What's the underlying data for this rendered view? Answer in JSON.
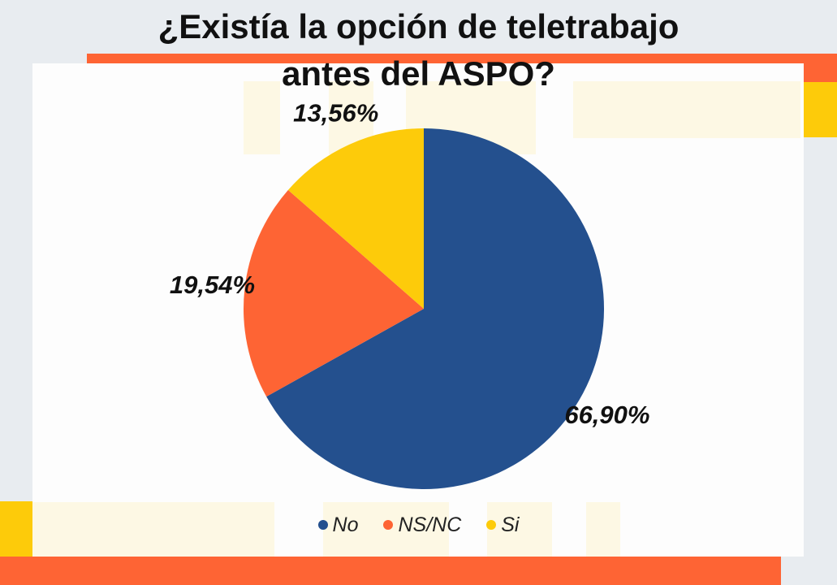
{
  "chart_data": {
    "type": "pie",
    "title": "¿Existía la opción de teletrabajo antes del ASPO?",
    "title_lines": [
      "¿Existía la opción de teletrabajo",
      "antes del ASPO?"
    ],
    "categories": [
      "No",
      "NS/NC",
      "Si"
    ],
    "values": [
      66.9,
      19.54,
      13.56
    ],
    "labels": [
      "66,90%",
      "19,54%",
      "13,56%"
    ],
    "colors": [
      "#24508e",
      "#fe6434",
      "#fdcb0a"
    ],
    "legend_position": "bottom"
  },
  "decor_colors": {
    "background": "#e8ecf0",
    "accent_orange": "#fe6434",
    "accent_yellow": "#fdcb0a",
    "pale_yellow": "#fdf8e4"
  }
}
